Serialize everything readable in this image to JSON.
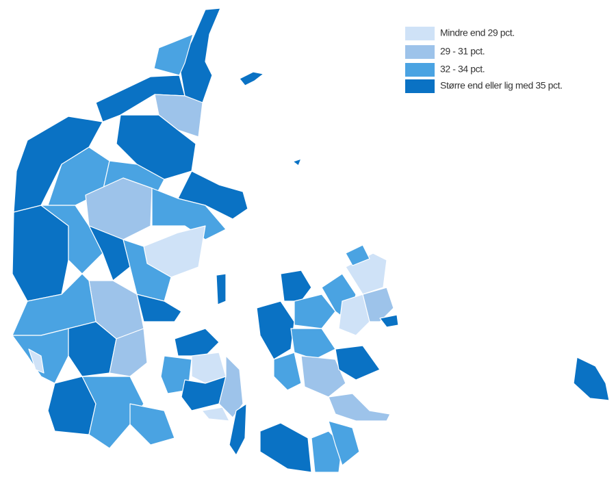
{
  "legend": {
    "items": [
      {
        "label": "Mindre end 29 pct.",
        "color": "#cfe2f7"
      },
      {
        "label": "29 - 31 pct.",
        "color": "#9dc3ea"
      },
      {
        "label": "32 - 34 pct.",
        "color": "#4aa3e2"
      },
      {
        "label": "Større end eller lig med 35 pct.",
        "color": "#0a72c4"
      }
    ]
  }
}
